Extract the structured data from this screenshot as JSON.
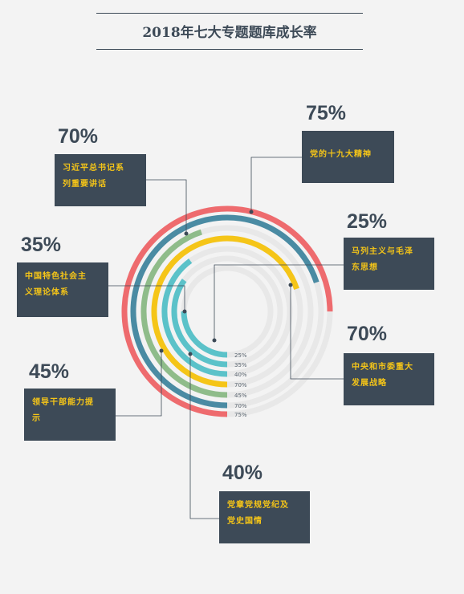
{
  "title": "2018年七大专题题库成长率",
  "chart_data": {
    "type": "radial-bar",
    "title": "2018年七大专题题库成长率",
    "series": [
      {
        "name": "党的十九大精神",
        "value": 75,
        "label": "75%",
        "color": "#ee6b6e",
        "box_lines": [
          "党的十九大精神"
        ]
      },
      {
        "name": "习近平总书记系列重要讲话",
        "value": 70,
        "label": "70%",
        "color": "#4a8ba3",
        "box_lines": [
          "习近平总书记系",
          "列重要讲话"
        ]
      },
      {
        "name": "领导干部能力提示",
        "value": 45,
        "label": "45%",
        "color": "#8fbc8a",
        "box_lines": [
          "领导干部能力提",
          "示"
        ]
      },
      {
        "name": "中央和市委重大发展战略",
        "value": 70,
        "label": "70%",
        "color": "#f5c518",
        "box_lines": [
          "中央和市委重大",
          "发展战略"
        ]
      },
      {
        "name": "党章党规党纪及党史国情",
        "value": 40,
        "label": "40%",
        "color": "#5bc2c9",
        "box_lines": [
          "党章党规党纪及",
          "党史国情"
        ]
      },
      {
        "name": "中国特色社会主义理论体系",
        "value": 35,
        "label": "35%",
        "color": "#5bc2c9",
        "box_lines": [
          "中国特色社会主",
          "义理论体系"
        ]
      },
      {
        "name": "马列主义与毛泽东思想",
        "value": 25,
        "label": "25%",
        "color": "#5bc2c9",
        "box_lines": [
          "马列主义与毛泽",
          "东思想"
        ]
      }
    ]
  }
}
